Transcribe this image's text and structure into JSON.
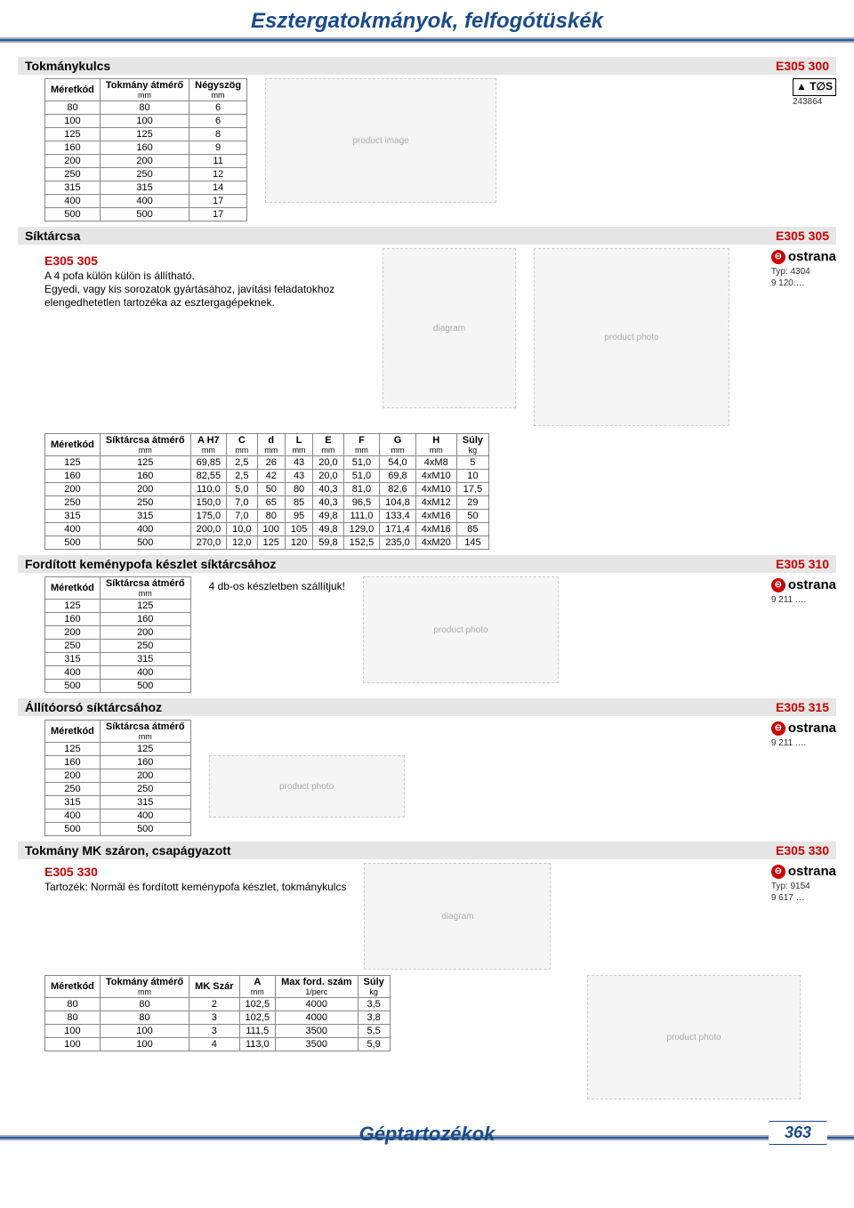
{
  "page": {
    "header_title": "Esztergatokmányok, felfogótüskék",
    "footer_title": "Géptartozékok",
    "page_number": "363"
  },
  "colors": {
    "brand_blue": "#1a4a8a",
    "code_red": "#cc0000",
    "section_bg": "#e6e6e6"
  },
  "sections": {
    "s1": {
      "title": "Tokmánykulcs",
      "code": "E305 300",
      "brand": {
        "name": "TOS",
        "sub": "243864"
      },
      "table": {
        "headers": [
          "Méretkód",
          "Tokmány átmérő",
          "Négyszög"
        ],
        "units": [
          "",
          "mm",
          "mm"
        ],
        "rows": [
          [
            "80",
            "80",
            "6"
          ],
          [
            "100",
            "100",
            "6"
          ],
          [
            "125",
            "125",
            "8"
          ],
          [
            "160",
            "160",
            "9"
          ],
          [
            "200",
            "200",
            "11"
          ],
          [
            "250",
            "250",
            "12"
          ],
          [
            "315",
            "315",
            "14"
          ],
          [
            "400",
            "400",
            "17"
          ],
          [
            "500",
            "500",
            "17"
          ]
        ]
      }
    },
    "s2": {
      "title": "Síktárcsa",
      "code": "E305 305",
      "brand": {
        "name": "ostrana",
        "sub1": "Typ: 4304",
        "sub2": "9 120.…"
      },
      "desc": {
        "code": "E305 305",
        "text": "A 4 pofa külön külön is állítható.\nEgyedi, vagy kis sorozatok gyártásához, javítási feladatokhoz elengedhetetlen tartozéka az esztergagépeknek."
      },
      "table": {
        "headers": [
          "Méretkód",
          "Síktárcsa átmérő",
          "A H7",
          "C",
          "d",
          "L",
          "E",
          "F",
          "G",
          "H",
          "Súly"
        ],
        "units": [
          "",
          "mm",
          "mm",
          "mm",
          "mm",
          "mm",
          "mm",
          "mm",
          "mm",
          "mm",
          "kg"
        ],
        "rows": [
          [
            "125",
            "125",
            "69,85",
            "2,5",
            "26",
            "43",
            "20,0",
            "51,0",
            "54,0",
            "4xM8",
            "5"
          ],
          [
            "160",
            "160",
            "82,55",
            "2,5",
            "42",
            "43",
            "20,0",
            "51,0",
            "69,8",
            "4xM10",
            "10"
          ],
          [
            "200",
            "200",
            "110,0",
            "5,0",
            "50",
            "80",
            "40,3",
            "81,0",
            "82,6",
            "4xM10",
            "17,5"
          ],
          [
            "250",
            "250",
            "150,0",
            "7,0",
            "65",
            "85",
            "40,3",
            "96,5",
            "104,8",
            "4xM12",
            "29"
          ],
          [
            "315",
            "315",
            "175,0",
            "7,0",
            "80",
            "95",
            "49,8",
            "111,0",
            "133,4",
            "4xM16",
            "50"
          ],
          [
            "400",
            "400",
            "200,0",
            "10,0",
            "100",
            "105",
            "49,8",
            "129,0",
            "171,4",
            "4xM16",
            "85"
          ],
          [
            "500",
            "500",
            "270,0",
            "12,0",
            "125",
            "120",
            "59,8",
            "152,5",
            "235,0",
            "4xM20",
            "145"
          ]
        ]
      }
    },
    "s3": {
      "title": "Fordított keménypofa készlet síktárcsához",
      "code": "E305 310",
      "brand": {
        "name": "ostrana",
        "sub": "9 211 .…"
      },
      "note": "4 db-os készletben szállítjuk!",
      "table": {
        "headers": [
          "Méretkód",
          "Síktárcsa átmérő"
        ],
        "units": [
          "",
          "mm"
        ],
        "rows": [
          [
            "125",
            "125"
          ],
          [
            "160",
            "160"
          ],
          [
            "200",
            "200"
          ],
          [
            "250",
            "250"
          ],
          [
            "315",
            "315"
          ],
          [
            "400",
            "400"
          ],
          [
            "500",
            "500"
          ]
        ]
      }
    },
    "s4": {
      "title": "Állítóorsó síktárcsához",
      "code": "E305 315",
      "brand": {
        "name": "ostrana",
        "sub": "9 211 .…"
      },
      "table": {
        "headers": [
          "Méretkód",
          "Síktárcsa átmérő"
        ],
        "units": [
          "",
          "mm"
        ],
        "rows": [
          [
            "125",
            "125"
          ],
          [
            "160",
            "160"
          ],
          [
            "200",
            "200"
          ],
          [
            "250",
            "250"
          ],
          [
            "315",
            "315"
          ],
          [
            "400",
            "400"
          ],
          [
            "500",
            "500"
          ]
        ]
      }
    },
    "s5": {
      "title": "Tokmány MK száron, csapágyazott",
      "code": "E305 330",
      "brand": {
        "name": "ostrana",
        "sub1": "Typ: 9154",
        "sub2": "9 617 …"
      },
      "desc": {
        "code": "E305 330",
        "text": "Tartozék: Normál és fordított keménypofa készlet, tokmánykulcs"
      },
      "table": {
        "headers": [
          "Méretkód",
          "Tokmány átmérő",
          "MK Szár",
          "A",
          "Max ford. szám",
          "Súly"
        ],
        "units": [
          "",
          "mm",
          "",
          "mm",
          "1/perc",
          "kg"
        ],
        "rows": [
          [
            "80",
            "80",
            "2",
            "102,5",
            "4000",
            "3,5"
          ],
          [
            "80",
            "80",
            "3",
            "102,5",
            "4000",
            "3,8"
          ],
          [
            "100",
            "100",
            "3",
            "111,5",
            "3500",
            "5,5"
          ],
          [
            "100",
            "100",
            "4",
            "113,0",
            "3500",
            "5,9"
          ]
        ]
      }
    }
  }
}
